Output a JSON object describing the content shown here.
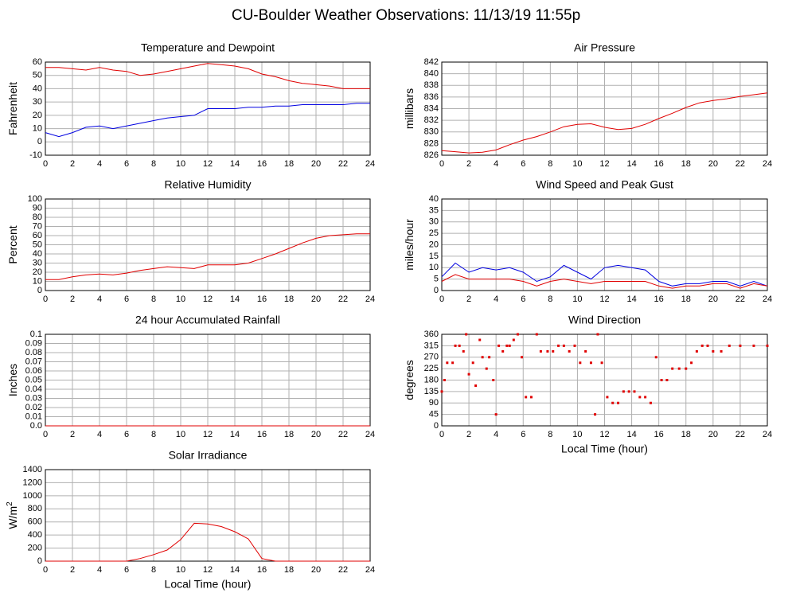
{
  "title": "CU-Boulder Weather Observations: 11/13/19 11:55p",
  "chart_data": [
    {
      "type": "line",
      "title": "Temperature and Dewpoint",
      "ylabel": "Fahrenheit",
      "x": [
        0,
        1,
        2,
        3,
        4,
        5,
        6,
        7,
        8,
        9,
        10,
        11,
        12,
        13,
        14,
        15,
        16,
        17,
        18,
        19,
        20,
        21,
        22,
        23,
        24
      ],
      "series": [
        {
          "color": "#e00000",
          "values": [
            56,
            56,
            55,
            54,
            56,
            54,
            53,
            50,
            51,
            53,
            55,
            57,
            59,
            58,
            57,
            55,
            51,
            49,
            46,
            44,
            43,
            42,
            40,
            40,
            40
          ]
        },
        {
          "color": "#0000e0",
          "values": [
            7,
            4,
            7,
            11,
            12,
            10,
            12,
            14,
            16,
            18,
            19,
            20,
            25,
            25,
            25,
            26,
            26,
            27,
            27,
            28,
            28,
            28,
            28,
            29,
            29
          ]
        }
      ],
      "xlim": [
        0,
        24
      ],
      "xticks": [
        0,
        2,
        4,
        6,
        8,
        10,
        12,
        14,
        16,
        18,
        20,
        22,
        24
      ],
      "ylim": [
        -10,
        60
      ],
      "yticks": [
        -10,
        0,
        10,
        20,
        30,
        40,
        50,
        60
      ],
      "grid": true
    },
    {
      "type": "line",
      "title": "Air Pressure",
      "ylabel": "millibars",
      "x": [
        0,
        1,
        2,
        3,
        4,
        5,
        6,
        7,
        8,
        9,
        10,
        11,
        12,
        13,
        14,
        15,
        16,
        17,
        18,
        19,
        20,
        21,
        22,
        23,
        24
      ],
      "series": [
        {
          "color": "#e00000",
          "values": [
            826.8,
            826.6,
            826.4,
            826.5,
            826.9,
            827.8,
            828.6,
            829.2,
            830.0,
            830.9,
            831.3,
            831.4,
            830.8,
            830.4,
            830.6,
            831.3,
            832.3,
            833.2,
            834.2,
            835.0,
            835.4,
            835.7,
            836.1,
            836.4,
            836.7
          ]
        }
      ],
      "xlim": [
        0,
        24
      ],
      "xticks": [
        0,
        2,
        4,
        6,
        8,
        10,
        12,
        14,
        16,
        18,
        20,
        22,
        24
      ],
      "ylim": [
        826,
        842
      ],
      "yticks": [
        826,
        828,
        830,
        832,
        834,
        836,
        838,
        840,
        842
      ],
      "grid": true
    },
    {
      "type": "line",
      "title": "Relative Humidity",
      "ylabel": "Percent",
      "x": [
        0,
        1,
        2,
        3,
        4,
        5,
        6,
        7,
        8,
        9,
        10,
        11,
        12,
        13,
        14,
        15,
        16,
        17,
        18,
        19,
        20,
        21,
        22,
        23,
        24
      ],
      "series": [
        {
          "color": "#e00000",
          "values": [
            12,
            12,
            15,
            17,
            18,
            17,
            19,
            22,
            24,
            26,
            25,
            24,
            28,
            28,
            28,
            30,
            35,
            40,
            46,
            52,
            57,
            60,
            61,
            62,
            62
          ]
        }
      ],
      "xlim": [
        0,
        24
      ],
      "xticks": [
        0,
        2,
        4,
        6,
        8,
        10,
        12,
        14,
        16,
        18,
        20,
        22,
        24
      ],
      "ylim": [
        0,
        100
      ],
      "yticks": [
        0,
        10,
        20,
        30,
        40,
        50,
        60,
        70,
        80,
        90,
        100
      ],
      "grid": true
    },
    {
      "type": "line",
      "title": "Wind Speed and Peak Gust",
      "ylabel": "miles/hour",
      "x": [
        0,
        1,
        2,
        3,
        4,
        5,
        6,
        7,
        8,
        9,
        10,
        11,
        12,
        13,
        14,
        15,
        16,
        17,
        18,
        19,
        20,
        21,
        22,
        23,
        24
      ],
      "series": [
        {
          "color": "#0000e0",
          "values": [
            6,
            12,
            8,
            10,
            9,
            10,
            8,
            4,
            6,
            11,
            8,
            5,
            10,
            11,
            10,
            9,
            4,
            2,
            3,
            3,
            4,
            4,
            2,
            4,
            2
          ]
        },
        {
          "color": "#e00000",
          "values": [
            4,
            7,
            5,
            5,
            5,
            5,
            4,
            2,
            4,
            5,
            4,
            3,
            4,
            4,
            4,
            4,
            2,
            1,
            2,
            2,
            3,
            3,
            1,
            3,
            2
          ]
        }
      ],
      "xlim": [
        0,
        24
      ],
      "xticks": [
        0,
        2,
        4,
        6,
        8,
        10,
        12,
        14,
        16,
        18,
        20,
        22,
        24
      ],
      "ylim": [
        0,
        40
      ],
      "yticks": [
        0,
        5,
        10,
        15,
        20,
        25,
        30,
        35,
        40
      ],
      "grid": true
    },
    {
      "type": "line",
      "title": "24 hour Accumulated Rainfall",
      "ylabel": "Inches",
      "x": [
        0,
        1,
        2,
        3,
        4,
        5,
        6,
        7,
        8,
        9,
        10,
        11,
        12,
        13,
        14,
        15,
        16,
        17,
        18,
        19,
        20,
        21,
        22,
        23,
        24
      ],
      "series": [
        {
          "color": "#e00000",
          "values": [
            0,
            0,
            0,
            0,
            0,
            0,
            0,
            0,
            0,
            0,
            0,
            0,
            0,
            0,
            0,
            0,
            0,
            0,
            0,
            0,
            0,
            0,
            0,
            0,
            0
          ]
        }
      ],
      "xlim": [
        0,
        24
      ],
      "xticks": [
        0,
        2,
        4,
        6,
        8,
        10,
        12,
        14,
        16,
        18,
        20,
        22,
        24
      ],
      "ylim": [
        0,
        0.1
      ],
      "yticks": [
        {
          "value": 0,
          "label": "0.0"
        },
        0.01,
        0.02,
        0.03,
        0.04,
        0.05,
        0.06,
        0.07,
        0.08,
        0.09,
        0.1
      ],
      "grid": true
    },
    {
      "type": "scatter",
      "title": "Wind Direction",
      "ylabel": "degrees",
      "xlabel": "Local Time (hour)",
      "x": [
        0,
        0.2,
        0.4,
        0.8,
        1,
        1.3,
        1.6,
        1.8,
        2,
        2.3,
        2.5,
        2.8,
        3,
        3.3,
        3.5,
        3.8,
        4,
        4.2,
        4.5,
        4.8,
        5,
        5.3,
        5.6,
        5.9,
        6.2,
        6.6,
        7,
        7.3,
        7.8,
        8.2,
        8.6,
        9,
        9.4,
        9.8,
        10.2,
        10.6,
        11,
        11.3,
        11.5,
        11.8,
        12.2,
        12.6,
        13,
        13.4,
        13.8,
        14.2,
        14.6,
        15,
        15.4,
        15.8,
        16.2,
        16.6,
        17,
        17.5,
        18,
        18.4,
        18.8,
        19.2,
        19.6,
        20,
        20.6,
        21.2,
        22,
        23,
        24
      ],
      "series": [
        {
          "color": "#e00000",
          "values": [
            135,
            180,
            248,
            248,
            315,
            315,
            293,
            360,
            203,
            248,
            158,
            338,
            270,
            225,
            270,
            180,
            45,
            315,
            293,
            315,
            315,
            338,
            360,
            270,
            113,
            113,
            360,
            293,
            293,
            293,
            315,
            315,
            293,
            315,
            248,
            293,
            248,
            45,
            360,
            248,
            113,
            90,
            90,
            135,
            135,
            135,
            113,
            113,
            90,
            270,
            180,
            180,
            225,
            225,
            225,
            248,
            293,
            315,
            315,
            293,
            293,
            315,
            315,
            315,
            315
          ]
        }
      ],
      "xlim": [
        0,
        24
      ],
      "xticks": [
        0,
        2,
        4,
        6,
        8,
        10,
        12,
        14,
        16,
        18,
        20,
        22,
        24
      ],
      "ylim": [
        0,
        360
      ],
      "yticks": [
        0,
        45,
        90,
        135,
        180,
        225,
        270,
        315,
        360
      ],
      "grid": true
    },
    {
      "type": "line",
      "title": "Solar Irradiance",
      "ylabel": "W/m",
      "ylabel_sup": "2",
      "xlabel": "Local Time (hour)",
      "x": [
        0,
        1,
        2,
        3,
        4,
        5,
        6,
        7,
        8,
        9,
        10,
        11,
        12,
        13,
        14,
        15,
        16,
        17,
        18,
        19,
        20,
        21,
        22,
        23,
        24
      ],
      "series": [
        {
          "color": "#e00000",
          "values": [
            0,
            0,
            0,
            0,
            0,
            0,
            0,
            40,
            100,
            170,
            330,
            580,
            570,
            530,
            450,
            340,
            40,
            0,
            0,
            0,
            0,
            0,
            0,
            0,
            0
          ]
        }
      ],
      "xlim": [
        0,
        24
      ],
      "xticks": [
        0,
        2,
        4,
        6,
        8,
        10,
        12,
        14,
        16,
        18,
        20,
        22,
        24
      ],
      "ylim": [
        0,
        1400
      ],
      "yticks": [
        0,
        200,
        400,
        600,
        800,
        1000,
        1200,
        1400
      ],
      "grid": true
    }
  ]
}
